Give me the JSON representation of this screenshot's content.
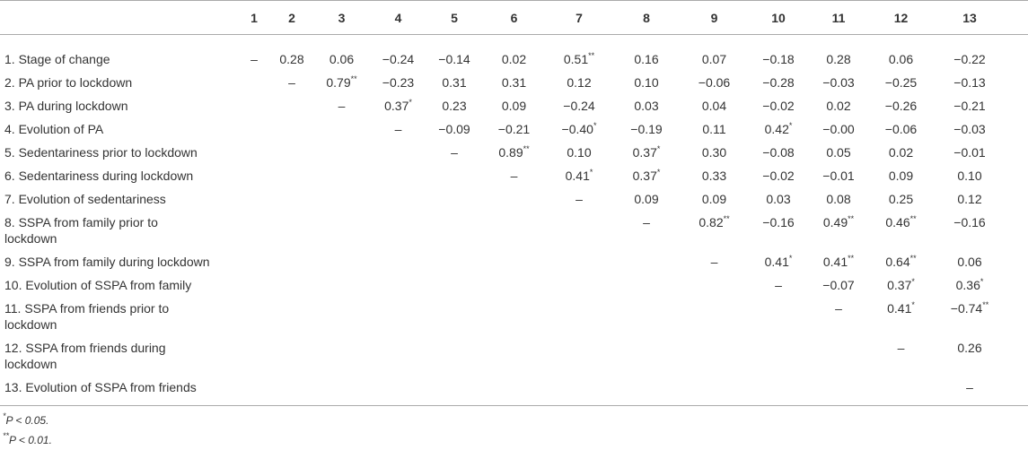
{
  "table": {
    "columns": [
      "1",
      "2",
      "3",
      "4",
      "5",
      "6",
      "7",
      "8",
      "9",
      "10",
      "11",
      "12",
      "13"
    ],
    "rows": [
      {
        "label": "1. Stage of change",
        "cells": [
          "–",
          "0.28",
          "0.06",
          "−0.24",
          "−0.14",
          "0.02",
          {
            "text": "0.51",
            "sup": "**"
          },
          "0.16",
          "0.07",
          "−0.18",
          "0.28",
          "0.06",
          "−0.22"
        ]
      },
      {
        "label": "2. PA prior to lockdown",
        "cells": [
          null,
          "–",
          {
            "text": "0.79",
            "sup": "**"
          },
          "−0.23",
          "0.31",
          "0.31",
          "0.12",
          "0.10",
          "−0.06",
          "−0.28",
          "−0.03",
          "−0.25",
          "−0.13"
        ]
      },
      {
        "label": "3. PA during lockdown",
        "cells": [
          null,
          null,
          "–",
          {
            "text": "0.37",
            "sup": "*"
          },
          "0.23",
          "0.09",
          "−0.24",
          "0.03",
          "0.04",
          "−0.02",
          "0.02",
          "−0.26",
          "−0.21"
        ]
      },
      {
        "label": "4. Evolution of PA",
        "cells": [
          null,
          null,
          null,
          "–",
          "−0.09",
          "−0.21",
          {
            "text": "−0.40",
            "sup": "*"
          },
          "−0.19",
          "0.11",
          {
            "text": "0.42",
            "sup": "*"
          },
          "−0.00",
          "−0.06",
          "−0.03"
        ]
      },
      {
        "label": "5. Sedentariness prior to lockdown",
        "cells": [
          null,
          null,
          null,
          null,
          "–",
          {
            "text": "0.89",
            "sup": "**"
          },
          "0.10",
          {
            "text": "0.37",
            "sup": "*"
          },
          "0.30",
          "−0.08",
          "0.05",
          "0.02",
          "−0.01"
        ]
      },
      {
        "label": "6. Sedentariness during lockdown",
        "cells": [
          null,
          null,
          null,
          null,
          null,
          "–",
          {
            "text": "0.41",
            "sup": "*"
          },
          {
            "text": "0.37",
            "sup": "*"
          },
          "0.33",
          "−0.02",
          "−0.01",
          "0.09",
          "0.10"
        ]
      },
      {
        "label": "7. Evolution of sedentariness",
        "cells": [
          null,
          null,
          null,
          null,
          null,
          null,
          "–",
          "0.09",
          "0.09",
          "0.03",
          "0.08",
          "0.25",
          "0.12"
        ]
      },
      {
        "label": "8. SSPA from family prior to lockdown",
        "cells": [
          null,
          null,
          null,
          null,
          null,
          null,
          null,
          "–",
          {
            "text": "0.82",
            "sup": "**"
          },
          "−0.16",
          {
            "text": "0.49",
            "sup": "**"
          },
          {
            "text": "0.46",
            "sup": "**"
          },
          "−0.16"
        ]
      },
      {
        "label": "9. SSPA from family during lockdown",
        "cells": [
          null,
          null,
          null,
          null,
          null,
          null,
          null,
          null,
          "–",
          {
            "text": "0.41",
            "sup": "*"
          },
          {
            "text": "0.41",
            "sup": "**"
          },
          {
            "text": "0.64",
            "sup": "**"
          },
          "0.06"
        ]
      },
      {
        "label": "10. Evolution of SSPA from family",
        "cells": [
          null,
          null,
          null,
          null,
          null,
          null,
          null,
          null,
          null,
          "–",
          "−0.07",
          {
            "text": "0.37",
            "sup": "*"
          },
          {
            "text": "0.36",
            "sup": "*"
          }
        ]
      },
      {
        "label": "11. SSPA from friends prior to lockdown",
        "cells": [
          null,
          null,
          null,
          null,
          null,
          null,
          null,
          null,
          null,
          null,
          "–",
          {
            "text": "0.41",
            "sup": "*"
          },
          {
            "text": "−0.74",
            "sup": "**"
          }
        ]
      },
      {
        "label": "12. SSPA from friends during lockdown",
        "cells": [
          null,
          null,
          null,
          null,
          null,
          null,
          null,
          null,
          null,
          null,
          null,
          "–",
          "0.26"
        ]
      },
      {
        "label": "13. Evolution of SSPA from friends",
        "cells": [
          null,
          null,
          null,
          null,
          null,
          null,
          null,
          null,
          null,
          null,
          null,
          null,
          "–"
        ]
      }
    ],
    "footnotes": [
      {
        "sup": "*",
        "text": "P < 0.05."
      },
      {
        "sup": "**",
        "text": "P < 0.01."
      }
    ]
  }
}
